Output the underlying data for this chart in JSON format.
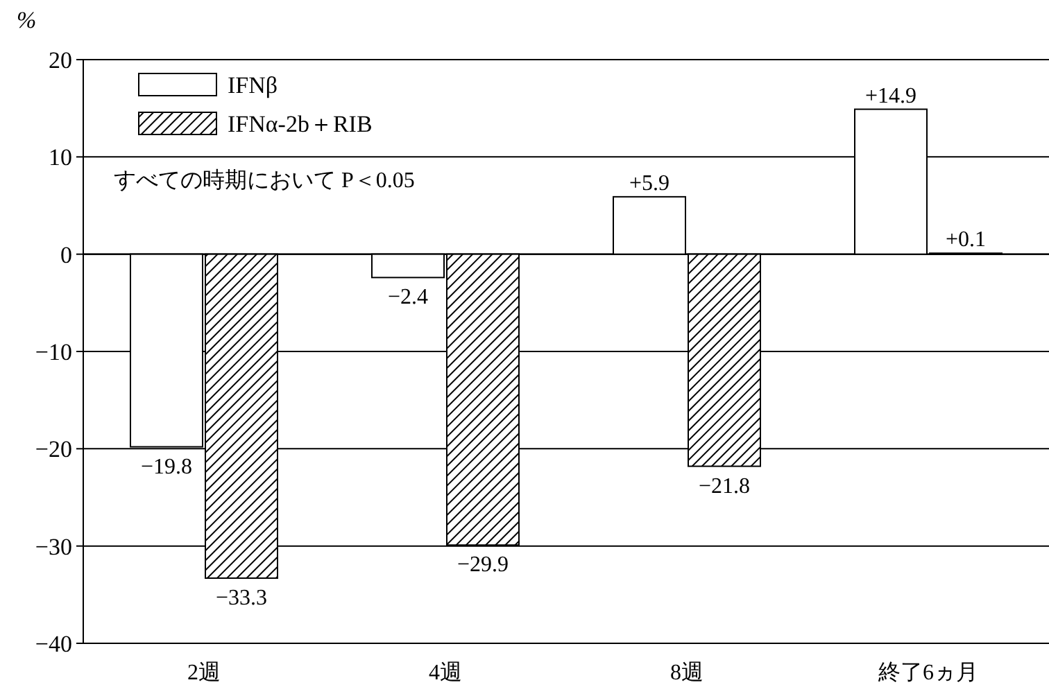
{
  "chart_data": {
    "type": "bar",
    "ylabel": "%",
    "categories": [
      "2週",
      "4週",
      "8週",
      "終了6ヵ月"
    ],
    "series": [
      {
        "name": "IFNβ",
        "color": "#ffffff",
        "values": [
          -19.8,
          -2.4,
          5.9,
          14.9
        ],
        "value_labels": [
          "−19.8",
          "−2.4",
          "+5.9",
          "+14.9"
        ]
      },
      {
        "name": "IFNα-2b＋RIB",
        "color": "#000000",
        "values": [
          -33.3,
          -29.9,
          -21.8,
          0.1
        ],
        "value_labels": [
          "−33.3",
          "−29.9",
          "−21.8",
          "+0.1"
        ]
      }
    ],
    "ylim": [
      -40,
      20
    ],
    "yticks": [
      {
        "value": -40,
        "label": "−40"
      },
      {
        "value": -30,
        "label": "−30"
      },
      {
        "value": -20,
        "label": "−20"
      },
      {
        "value": -10,
        "label": "−10"
      },
      0,
      10,
      20
    ],
    "grid": "y",
    "legend": "top left",
    "annotations": [
      "すべての時期において P＜0.05"
    ]
  }
}
